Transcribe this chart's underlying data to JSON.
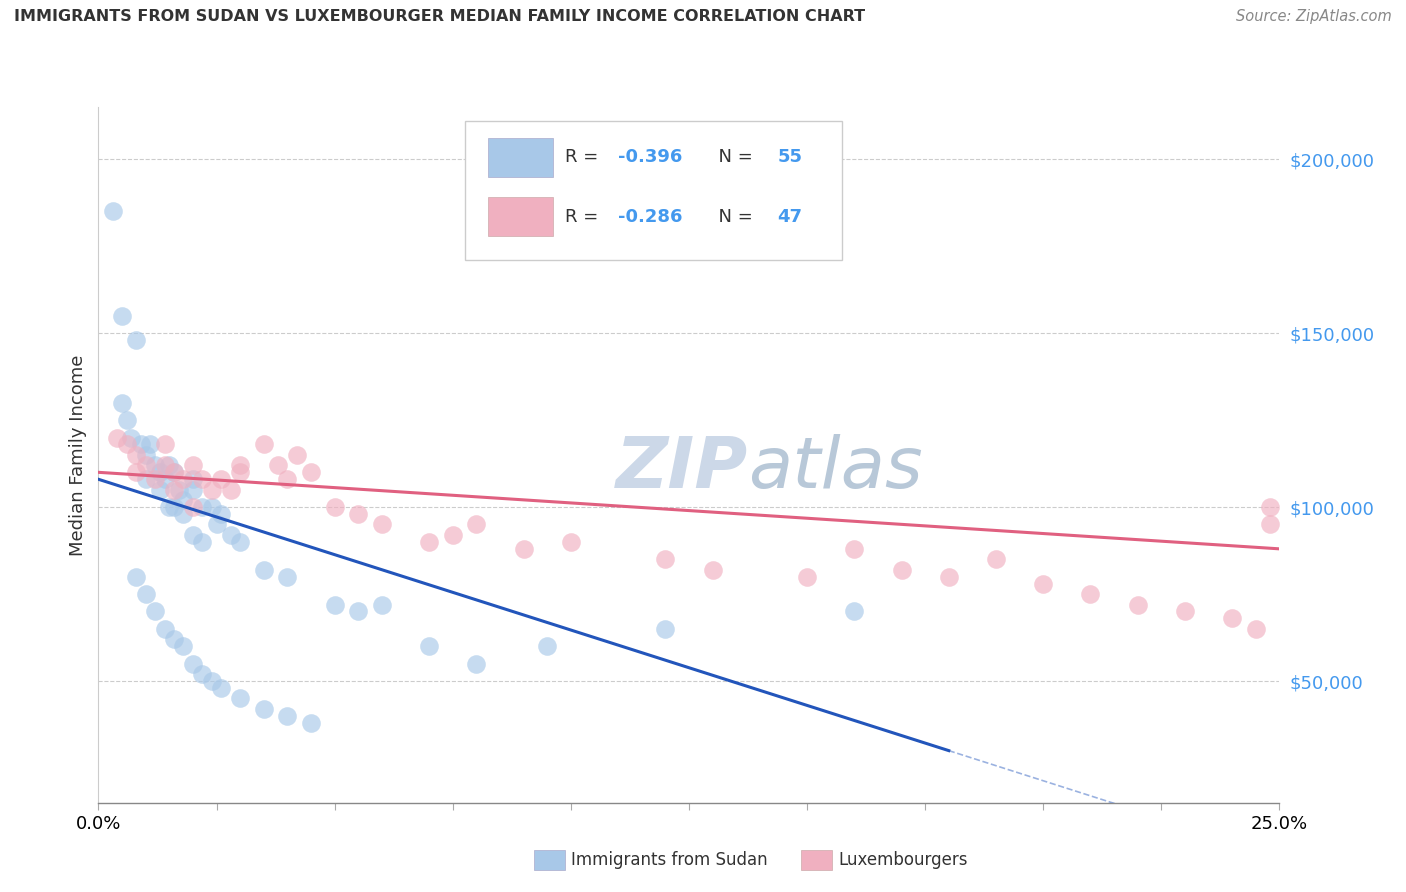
{
  "title": "IMMIGRANTS FROM SUDAN VS LUXEMBOURGER MEDIAN FAMILY INCOME CORRELATION CHART",
  "source": "Source: ZipAtlas.com",
  "ylabel": "Median Family Income",
  "y_ticks": [
    50000,
    100000,
    150000,
    200000
  ],
  "y_tick_labels": [
    "$50,000",
    "$100,000",
    "$150,000",
    "$200,000"
  ],
  "x_min": 0.0,
  "x_max": 0.25,
  "y_min": 15000,
  "y_max": 215000,
  "blue_R": -0.396,
  "blue_N": 55,
  "pink_R": -0.286,
  "pink_N": 47,
  "blue_color": "#a8c8e8",
  "pink_color": "#f0b0c0",
  "blue_line_color": "#2255bb",
  "pink_line_color": "#e06080",
  "watermark_color": "#ccd8e8",
  "legend_label_blue": "Immigrants from Sudan",
  "legend_label_pink": "Luxembourgers",
  "blue_line_x0": 0.0,
  "blue_line_y0": 108000,
  "blue_line_x1": 0.18,
  "blue_line_y1": 30000,
  "pink_line_x0": 0.0,
  "pink_line_y0": 110000,
  "pink_line_x1": 0.25,
  "pink_line_y1": 88000,
  "blue_scatter_x": [
    0.003,
    0.005,
    0.008,
    0.005,
    0.006,
    0.007,
    0.009,
    0.01,
    0.011,
    0.012,
    0.01,
    0.013,
    0.014,
    0.015,
    0.013,
    0.016,
    0.017,
    0.015,
    0.018,
    0.02,
    0.016,
    0.018,
    0.02,
    0.022,
    0.024,
    0.026,
    0.02,
    0.022,
    0.025,
    0.028,
    0.03,
    0.035,
    0.04,
    0.05,
    0.055,
    0.06,
    0.07,
    0.08,
    0.095,
    0.12,
    0.16,
    0.008,
    0.01,
    0.012,
    0.014,
    0.016,
    0.018,
    0.02,
    0.022,
    0.024,
    0.026,
    0.03,
    0.035,
    0.04,
    0.045
  ],
  "blue_scatter_y": [
    185000,
    155000,
    148000,
    130000,
    125000,
    120000,
    118000,
    115000,
    118000,
    112000,
    108000,
    110000,
    108000,
    112000,
    105000,
    110000,
    105000,
    100000,
    102000,
    108000,
    100000,
    98000,
    105000,
    100000,
    100000,
    98000,
    92000,
    90000,
    95000,
    92000,
    90000,
    82000,
    80000,
    72000,
    70000,
    72000,
    60000,
    55000,
    60000,
    65000,
    70000,
    80000,
    75000,
    70000,
    65000,
    62000,
    60000,
    55000,
    52000,
    50000,
    48000,
    45000,
    42000,
    40000,
    38000
  ],
  "pink_scatter_x": [
    0.004,
    0.006,
    0.008,
    0.008,
    0.01,
    0.012,
    0.014,
    0.014,
    0.016,
    0.018,
    0.02,
    0.016,
    0.022,
    0.024,
    0.02,
    0.026,
    0.03,
    0.028,
    0.035,
    0.03,
    0.038,
    0.04,
    0.042,
    0.045,
    0.05,
    0.055,
    0.06,
    0.07,
    0.075,
    0.08,
    0.09,
    0.1,
    0.12,
    0.13,
    0.15,
    0.16,
    0.17,
    0.18,
    0.19,
    0.2,
    0.21,
    0.22,
    0.23,
    0.24,
    0.245,
    0.248,
    0.248
  ],
  "pink_scatter_y": [
    120000,
    118000,
    115000,
    110000,
    112000,
    108000,
    118000,
    112000,
    110000,
    108000,
    112000,
    105000,
    108000,
    105000,
    100000,
    108000,
    112000,
    105000,
    118000,
    110000,
    112000,
    108000,
    115000,
    110000,
    100000,
    98000,
    95000,
    90000,
    92000,
    95000,
    88000,
    90000,
    85000,
    82000,
    80000,
    88000,
    82000,
    80000,
    85000,
    78000,
    75000,
    72000,
    70000,
    68000,
    65000,
    100000,
    95000
  ]
}
